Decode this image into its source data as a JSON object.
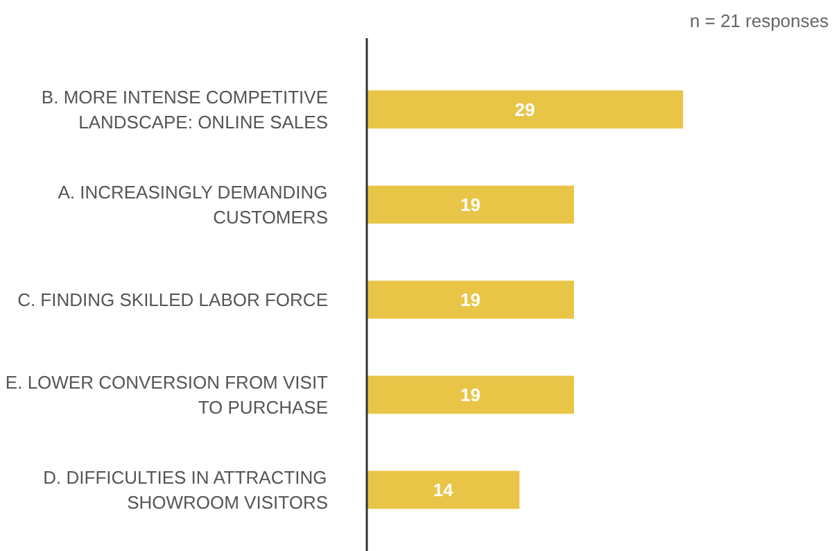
{
  "chart_data": {
    "type": "bar",
    "orientation": "horizontal",
    "tick_labels": "y",
    "data_labels": true,
    "categories": [
      "B. MORE INTENSE COMPETITIVE LANDSCAPE: ONLINE SALES",
      "A. INCREASINGLY DEMANDING CUSTOMERS",
      "C. FINDING SKILLED LABOR FORCE",
      "E. LOWER CONVERSION FROM VISIT TO PURCHASE",
      "D. DIFFICULTIES IN ATTRACTING SHOWROOM VISITORS"
    ],
    "values": [
      29,
      19,
      19,
      19,
      14
    ],
    "color": "#e8c547",
    "annotations": [
      "n = 21 responses"
    ]
  }
}
